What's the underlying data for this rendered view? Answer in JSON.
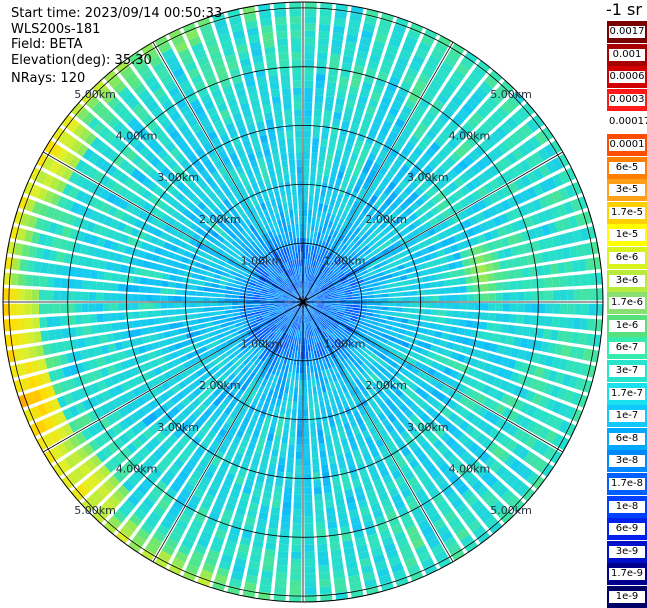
{
  "header": {
    "start_time": "Start time: 2023/09/14 00:50:33",
    "instrument": "WLS200s-181",
    "field": "Field: BETA",
    "elevation": "Elevation(deg): 35.30",
    "nrays": "NRays: 120"
  },
  "colorbar": {
    "title": "-1 sr",
    "labels": [
      "0.0017",
      "0.001",
      "0.0006",
      "0.0003",
      "0.00017",
      "0.0001",
      "6e-5",
      "3e-5",
      "1.7e-5",
      "1e-5",
      "6e-6",
      "3e-6",
      "1.7e-6",
      "1e-6",
      "6e-7",
      "3e-7",
      "1.7e-7",
      "1e-7",
      "6e-8",
      "3e-8",
      "1.7e-8",
      "1e-8",
      "6e-9",
      "3e-9",
      "1.7e-9",
      "1e-9"
    ],
    "colors": [
      "#7a0000",
      "#a80000",
      "#d00000",
      "#ff1a1a",
      "#ffffff",
      "#ff4d00",
      "#ff8000",
      "#ff9f1a",
      "#ffd000",
      "#ffff00",
      "#d8f21e",
      "#b8eb3a",
      "#88e070",
      "#57e07c",
      "#35ecae",
      "#26e5cc",
      "#19e0ee",
      "#10c8ff",
      "#00a8ff",
      "#0088ff",
      "#0060ff",
      "#0040ff",
      "#0020ee",
      "#0010c8",
      "#00008c",
      "#000066"
    ]
  },
  "range_labels": [
    "1.00km",
    "2.00km",
    "3.00km",
    "4.00km",
    "5.00km"
  ],
  "chart_data": {
    "type": "polar-ppi",
    "field": "BETA",
    "units": "-1 sr",
    "elevation_deg": 35.3,
    "n_rays": 120,
    "range_rings_km": [
      1,
      2,
      3,
      4,
      5
    ],
    "max_range_km": 5.1,
    "value_scale": "log",
    "value_range": [
      1e-09,
      0.0017
    ],
    "dominant_value_range": [
      1e-08,
      1e-06
    ],
    "high_value_patches": [
      {
        "azimuth_deg": 300,
        "range_km": 4.8,
        "approx_value": 3e-06
      },
      {
        "azimuth_deg": 265,
        "range_km": 4.9,
        "approx_value": 6e-06
      },
      {
        "azimuth_deg": 250,
        "range_km": 4.8,
        "approx_value": 1e-05
      },
      {
        "azimuth_deg": 230,
        "range_km": 4.7,
        "approx_value": 3e-06
      },
      {
        "azimuth_deg": 55,
        "range_km": 2.9,
        "approx_value": 3e-07
      },
      {
        "azimuth_deg": 80,
        "range_km": 3.1,
        "approx_value": 1e-06
      },
      {
        "azimuth_deg": 120,
        "range_km": 3.3,
        "approx_value": 3e-07
      }
    ]
  }
}
